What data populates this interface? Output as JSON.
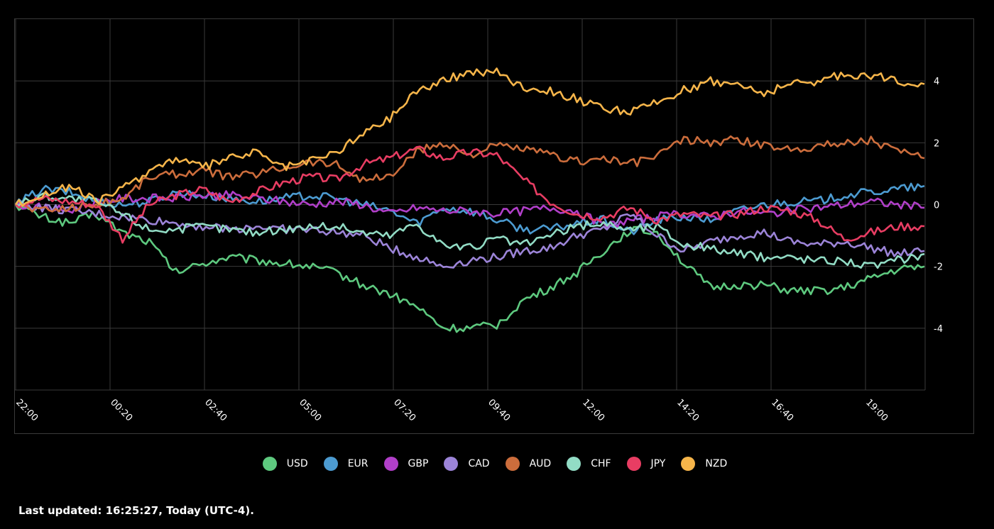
{
  "chart_data": {
    "type": "line",
    "title": "",
    "xlabel": "",
    "ylabel": "",
    "x_ticks": [
      "22:00",
      "00:20",
      "02:40",
      "05:00",
      "07:20",
      "09:40",
      "12:00",
      "14:20",
      "16:40",
      "19:00"
    ],
    "y_ticks": [
      4,
      2,
      0,
      -2,
      -4
    ],
    "ylim": [
      -6,
      6
    ],
    "grid": true,
    "legend_position": "bottom",
    "x": [
      "22:00",
      "22:40",
      "23:20",
      "00:00",
      "00:40",
      "01:20",
      "02:00",
      "02:40",
      "03:20",
      "04:00",
      "04:40",
      "05:20",
      "06:00",
      "06:40",
      "07:20",
      "08:00",
      "08:40",
      "09:20",
      "10:00",
      "10:40",
      "11:20",
      "12:00",
      "12:40",
      "13:20",
      "14:00",
      "14:40",
      "15:20",
      "16:00",
      "16:40",
      "17:20",
      "18:00",
      "18:40",
      "19:20",
      "20:00",
      "20:20"
    ],
    "series": [
      {
        "name": "USD",
        "color": "#5ec97f",
        "values": [
          0,
          -0.4,
          -0.6,
          -0.3,
          -0.9,
          -1.2,
          -2.2,
          -1.9,
          -1.7,
          -1.8,
          -1.9,
          -2.0,
          -2.2,
          -2.6,
          -2.9,
          -3.3,
          -4.0,
          -4.0,
          -3.9,
          -3.1,
          -2.7,
          -2.2,
          -1.5,
          -0.8,
          -0.9,
          -1.9,
          -2.7,
          -2.6,
          -2.6,
          -2.8,
          -2.8,
          -2.7,
          -2.4,
          -2.1,
          -2.0
        ]
      },
      {
        "name": "EUR",
        "color": "#4c9bd1",
        "values": [
          0,
          0.5,
          0.4,
          0.1,
          0,
          0.1,
          0.4,
          0.3,
          0.2,
          0.1,
          0.2,
          0.3,
          0.2,
          0,
          -0.2,
          -0.6,
          -0.1,
          -0.2,
          -0.5,
          -0.8,
          -0.8,
          -0.6,
          -0.5,
          -0.9,
          -0.5,
          -0.4,
          -0.5,
          -0.2,
          0,
          0.1,
          0.1,
          0.3,
          0.4,
          0.5,
          0.6
        ]
      },
      {
        "name": "GBP",
        "color": "#b13fc9",
        "values": [
          0,
          -0.1,
          -0.2,
          0.1,
          0.2,
          0.2,
          0.2,
          0.3,
          0.3,
          0.2,
          0.1,
          0,
          0.1,
          0,
          -0.3,
          -0.1,
          -0.2,
          -0.2,
          -0.3,
          -0.2,
          -0.1,
          -0.2,
          -0.7,
          -0.5,
          -0.4,
          -0.3,
          -0.4,
          -0.2,
          -0.3,
          -0.2,
          -0.1,
          0,
          0.1,
          0,
          -0.1
        ]
      },
      {
        "name": "CAD",
        "color": "#9c84d8",
        "values": [
          0,
          -0.1,
          -0.2,
          -0.3,
          -0.4,
          -0.5,
          -0.6,
          -0.7,
          -0.8,
          -0.7,
          -0.8,
          -0.8,
          -0.9,
          -1.0,
          -1.4,
          -1.7,
          -2.0,
          -1.8,
          -1.7,
          -1.5,
          -1.4,
          -1.0,
          -0.8,
          -0.3,
          -1.0,
          -1.5,
          -1.2,
          -1.0,
          -0.9,
          -1.2,
          -1.3,
          -1.2,
          -1.4,
          -1.6,
          -1.5
        ]
      },
      {
        "name": "AUD",
        "color": "#cc6d3c",
        "values": [
          0,
          -0.2,
          -0.1,
          0,
          0.2,
          0.9,
          1.0,
          1.1,
          0.9,
          1.0,
          1.2,
          1.4,
          1.3,
          0.8,
          0.9,
          1.7,
          2.0,
          1.6,
          1.9,
          1.8,
          1.6,
          1.4,
          1.5,
          1.3,
          1.6,
          2.1,
          2.0,
          2.1,
          1.9,
          1.8,
          1.9,
          2.0,
          2.1,
          1.7,
          1.5
        ]
      },
      {
        "name": "CHF",
        "color": "#92dcc5",
        "values": [
          0,
          0.3,
          0.2,
          0.1,
          -0.3,
          -0.8,
          -0.8,
          -0.7,
          -0.8,
          -0.9,
          -0.8,
          -0.7,
          -0.7,
          -0.9,
          -1.0,
          -0.6,
          -1.3,
          -1.4,
          -1.1,
          -1.3,
          -1.0,
          -0.7,
          -0.6,
          -0.8,
          -0.7,
          -1.3,
          -1.4,
          -1.6,
          -1.7,
          -1.7,
          -1.8,
          -1.8,
          -2.0,
          -1.8,
          -1.6
        ]
      },
      {
        "name": "JPY",
        "color": "#e83d63",
        "values": [
          0,
          0.2,
          0.1,
          0,
          -1.1,
          0,
          0.3,
          0.5,
          0.1,
          0.4,
          0.7,
          0.9,
          0.8,
          1.3,
          1.5,
          1.8,
          1.5,
          1.7,
          1.6,
          0.8,
          0.1,
          -0.3,
          -0.4,
          -0.1,
          -0.5,
          -0.3,
          -0.4,
          -0.3,
          -0.1,
          -0.2,
          -0.5,
          -1.1,
          -0.9,
          -0.7,
          -0.7
        ]
      },
      {
        "name": "NZD",
        "color": "#f6b54a",
        "values": [
          0,
          0.3,
          0.6,
          0.1,
          0.5,
          1.1,
          1.5,
          1.2,
          1.5,
          1.7,
          1.2,
          1.4,
          1.7,
          2.3,
          2.8,
          3.7,
          4.0,
          4.3,
          4.3,
          3.8,
          3.7,
          3.4,
          3.1,
          3.0,
          3.3,
          3.7,
          4.0,
          3.9,
          3.6,
          3.9,
          4.0,
          4.2,
          4.2,
          4.0,
          3.9
        ]
      }
    ]
  },
  "footer": {
    "last_updated": "Last updated: 16:25:27, Today (UTC-4)."
  }
}
